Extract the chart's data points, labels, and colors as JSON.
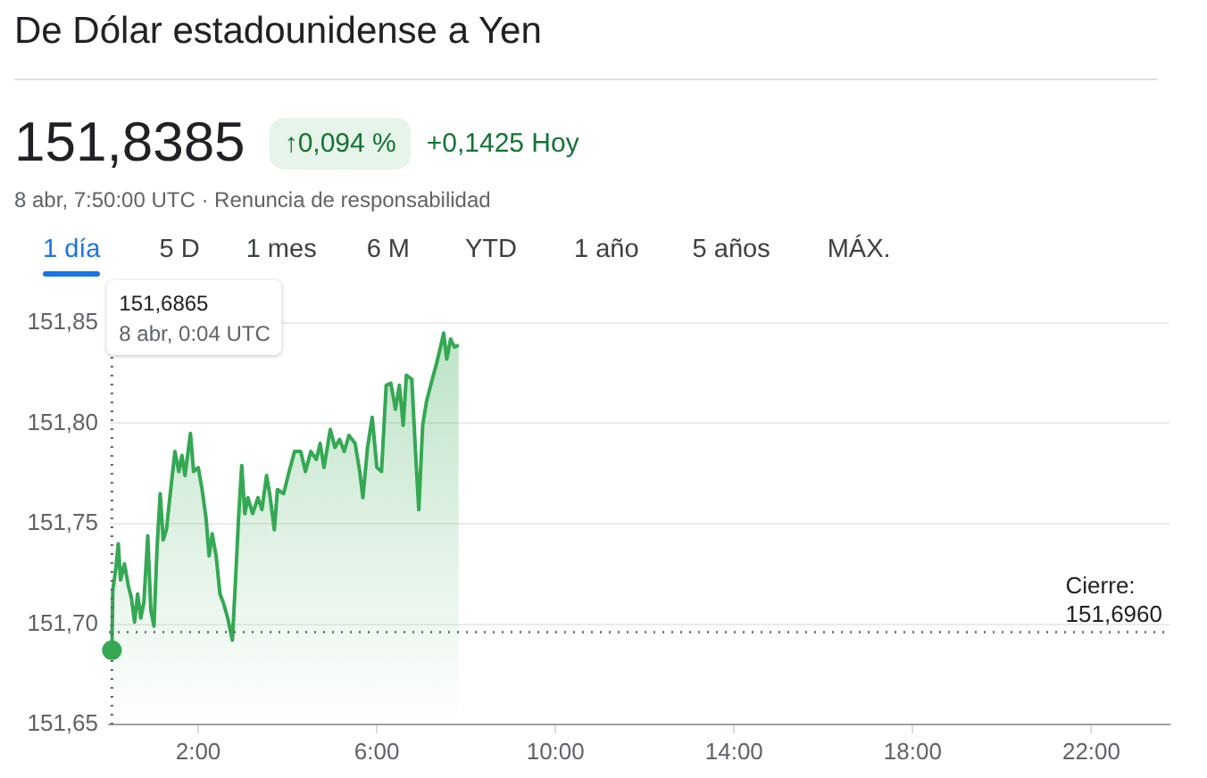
{
  "chart_data": {
    "type": "area",
    "title": "De Dólar estadounidense a Yen",
    "subtitle": "8 abr, 7:50:00 UTC · Renuncia de responsabilidad",
    "annotations": [
      "151,8385",
      "↑0,094 %",
      "+0,1425 Hoy",
      "1 día",
      "5 D",
      "1 mes",
      "6 M",
      "YTD",
      "1 año",
      "5 años",
      "MÁX.",
      "151,6865",
      "8 abr, 0:04 UTC"
    ],
    "color": "#34a853",
    "x": [
      0.067,
      0.087,
      0.157,
      0.209,
      0.261,
      0.348,
      0.435,
      0.504,
      0.574,
      0.643,
      0.713,
      0.783,
      0.87,
      0.939,
      1.009,
      1.078,
      1.148,
      1.217,
      1.287,
      1.374,
      1.478,
      1.565,
      1.635,
      1.704,
      1.826,
      1.896,
      2.0,
      2.087,
      2.174,
      2.243,
      2.313,
      2.4,
      2.487,
      2.557,
      2.661,
      2.765,
      2.835,
      2.904,
      2.974,
      3.043,
      3.113,
      3.217,
      3.339,
      3.426,
      3.53,
      3.6,
      3.704,
      3.774,
      3.913,
      4.035,
      4.157,
      4.296,
      4.4,
      4.522,
      4.643,
      4.73,
      4.817,
      4.957,
      5.061,
      5.165,
      5.27,
      5.374,
      5.513,
      5.617,
      5.687,
      5.791,
      5.896,
      6.0,
      6.104,
      6.209,
      6.313,
      6.417,
      6.504,
      6.591,
      6.661,
      6.783,
      6.87,
      6.939,
      7.026,
      7.113,
      7.217,
      7.339,
      7.426,
      7.496,
      7.565,
      7.652,
      7.739,
      7.833
    ],
    "values": [
      151.687,
      151.717,
      151.728,
      151.74,
      151.722,
      151.73,
      151.719,
      151.713,
      151.701,
      151.715,
      151.703,
      151.711,
      151.744,
      151.707,
      151.699,
      151.738,
      151.765,
      151.742,
      151.747,
      151.765,
      151.786,
      151.776,
      151.784,
      151.774,
      151.795,
      151.776,
      151.778,
      151.767,
      151.753,
      151.734,
      151.745,
      151.734,
      151.715,
      151.711,
      151.703,
      151.692,
      151.722,
      151.753,
      151.779,
      151.755,
      151.763,
      151.755,
      151.763,
      151.757,
      151.774,
      151.765,
      151.747,
      151.767,
      151.765,
      151.776,
      151.786,
      151.786,
      151.776,
      151.786,
      151.782,
      151.79,
      151.778,
      151.797,
      151.788,
      151.792,
      151.786,
      151.794,
      151.79,
      151.776,
      151.763,
      151.788,
      151.803,
      151.778,
      151.776,
      151.819,
      151.82,
      151.807,
      151.819,
      151.799,
      151.824,
      151.822,
      151.784,
      151.757,
      151.799,
      151.811,
      151.82,
      151.83,
      151.838,
      151.845,
      151.832,
      151.842,
      151.838,
      151.839
    ],
    "xlim": [
      0,
      23.75
    ],
    "ylim": [
      151.65,
      151.85
    ],
    "xticks": [
      {
        "value": 2,
        "label": "2:00"
      },
      {
        "value": 6,
        "label": "6:00"
      },
      {
        "value": 10,
        "label": "10:00"
      },
      {
        "value": 14,
        "label": "14:00"
      },
      {
        "value": 18,
        "label": "18:00"
      },
      {
        "value": 22,
        "label": "22:00"
      }
    ],
    "yticks": [
      {
        "value": 151.65,
        "label": "151,65"
      },
      {
        "value": 151.7,
        "label": "151,70"
      },
      {
        "value": 151.75,
        "label": "151,75"
      },
      {
        "value": 151.8,
        "label": "151,80"
      },
      {
        "value": 151.85,
        "label": "151,85"
      }
    ],
    "grid": "y",
    "ref_lines": [
      {
        "axis": "y",
        "value": 151.696,
        "label": "Cierre: 151,6960",
        "line_style": "dotted",
        "color": "#5f6368"
      }
    ]
  }
}
